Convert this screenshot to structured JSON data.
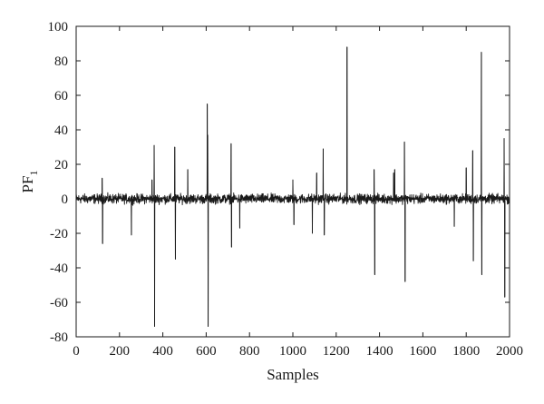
{
  "chart_data": {
    "type": "line",
    "title": "",
    "xlabel": "Samples",
    "ylabel": "PF",
    "ylabel_subscript": "1",
    "xlim": [
      0,
      2000
    ],
    "ylim": [
      -80,
      100
    ],
    "xticks": [
      0,
      200,
      400,
      600,
      800,
      1000,
      1200,
      1400,
      1600,
      1800,
      2000
    ],
    "yticks": [
      -80,
      -60,
      -40,
      -20,
      0,
      20,
      40,
      60,
      80,
      100
    ],
    "xtick_labels": [
      "0",
      "200",
      "400",
      "600",
      "800",
      "1000",
      "1200",
      "1400",
      "1600",
      "1800",
      "2000"
    ],
    "ytick_labels": [
      "-80",
      "-60",
      "-40",
      "-20",
      "0",
      "20",
      "40",
      "60",
      "80",
      "100"
    ],
    "grid": false,
    "line_color": "#1a1a1a",
    "n_samples": 2000,
    "baseline_noise_amplitude": 4,
    "spikes": [
      {
        "x": 120,
        "y": 12
      },
      {
        "x": 122,
        "y": -26
      },
      {
        "x": 255,
        "y": -21
      },
      {
        "x": 350,
        "y": 11
      },
      {
        "x": 360,
        "y": 31
      },
      {
        "x": 362,
        "y": -74
      },
      {
        "x": 455,
        "y": 30
      },
      {
        "x": 458,
        "y": -35
      },
      {
        "x": 515,
        "y": 17
      },
      {
        "x": 605,
        "y": 55
      },
      {
        "x": 607,
        "y": 37
      },
      {
        "x": 609,
        "y": -74
      },
      {
        "x": 715,
        "y": 32
      },
      {
        "x": 717,
        "y": -28
      },
      {
        "x": 755,
        "y": -17
      },
      {
        "x": 1000,
        "y": 11
      },
      {
        "x": 1005,
        "y": -15
      },
      {
        "x": 1090,
        "y": -20
      },
      {
        "x": 1110,
        "y": 15
      },
      {
        "x": 1140,
        "y": 29
      },
      {
        "x": 1145,
        "y": -21
      },
      {
        "x": 1250,
        "y": 88
      },
      {
        "x": 1375,
        "y": 17
      },
      {
        "x": 1378,
        "y": -44
      },
      {
        "x": 1465,
        "y": 15
      },
      {
        "x": 1470,
        "y": 17
      },
      {
        "x": 1515,
        "y": 33
      },
      {
        "x": 1518,
        "y": -48
      },
      {
        "x": 1745,
        "y": -16
      },
      {
        "x": 1800,
        "y": 18
      },
      {
        "x": 1830,
        "y": 28
      },
      {
        "x": 1833,
        "y": -36
      },
      {
        "x": 1870,
        "y": 85
      },
      {
        "x": 1872,
        "y": -44
      },
      {
        "x": 1975,
        "y": 35
      },
      {
        "x": 1978,
        "y": -57
      }
    ]
  }
}
